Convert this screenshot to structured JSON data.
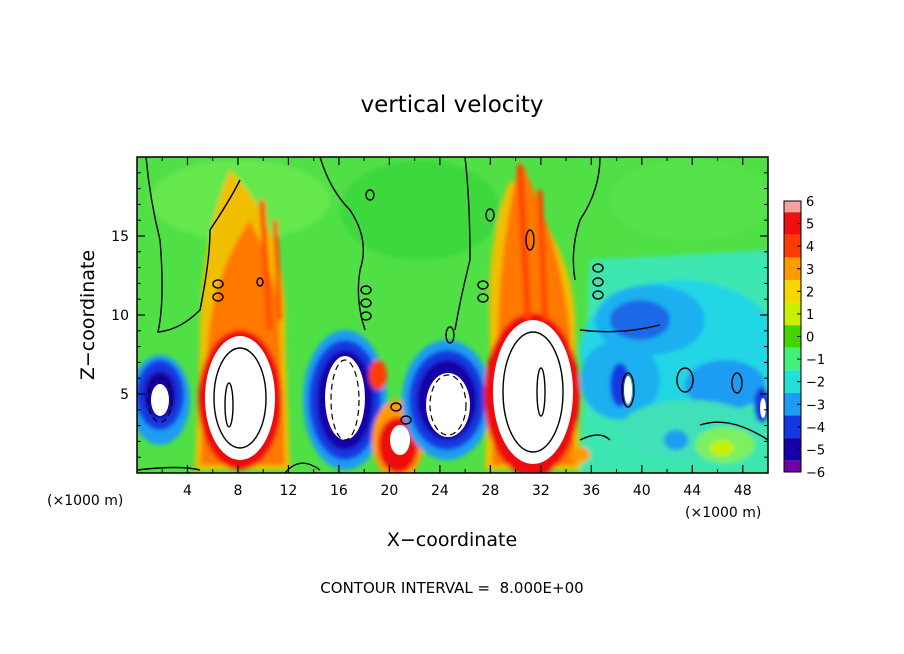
{
  "chart_data": {
    "type": "heatmap",
    "title": "vertical velocity",
    "xlabel": "X−coordinate",
    "ylabel": "Z−coordinate",
    "x_unit_left": "(×1000 m)",
    "x_unit_right": "(×1000 m)",
    "xlim": [
      0,
      50
    ],
    "ylim": [
      0,
      20
    ],
    "x_ticks": [
      "4",
      "8",
      "12",
      "16",
      "20",
      "24",
      "28",
      "32",
      "36",
      "40",
      "44",
      "48"
    ],
    "y_ticks": [
      "5",
      "10",
      "15"
    ],
    "colorbar": {
      "ticks": [
        "6",
        "5",
        "4",
        "3",
        "2",
        "1",
        "0",
        "−1",
        "−2",
        "−3",
        "−4",
        "−5",
        "−6"
      ],
      "range": [
        -6,
        6
      ],
      "colors": [
        "#f8a0a0",
        "#ee1010",
        "#ff3c00",
        "#ff9a00",
        "#f6d800",
        "#c8f000",
        "#44d400",
        "#44f07a",
        "#22e0d8",
        "#1c9cf2",
        "#1438e2",
        "#1800a8",
        "#7000a8"
      ]
    },
    "features": [
      {
        "x": 0.8,
        "z": 3.5,
        "w": 2,
        "kind": "downdraft"
      },
      {
        "x": 7.5,
        "z": 5.2,
        "w": 14,
        "kind": "updraft"
      },
      {
        "x": 15.5,
        "z": 5.0,
        "w": -12,
        "kind": "downdraft"
      },
      {
        "x": 21.0,
        "z": 2.4,
        "w": 10,
        "kind": "updraft"
      },
      {
        "x": 25.0,
        "z": 5.0,
        "w": -11,
        "kind": "downdraft"
      },
      {
        "x": 31.0,
        "z": 6.0,
        "w": 14,
        "kind": "updraft"
      },
      {
        "x": 38.5,
        "z": 5.5,
        "w": -6,
        "kind": "downdraft"
      },
      {
        "x": 49.5,
        "z": 4.0,
        "w": -7,
        "kind": "downdraft"
      }
    ],
    "footer": "CONTOUR INTERVAL =  8.000E+00",
    "legend": "right"
  }
}
